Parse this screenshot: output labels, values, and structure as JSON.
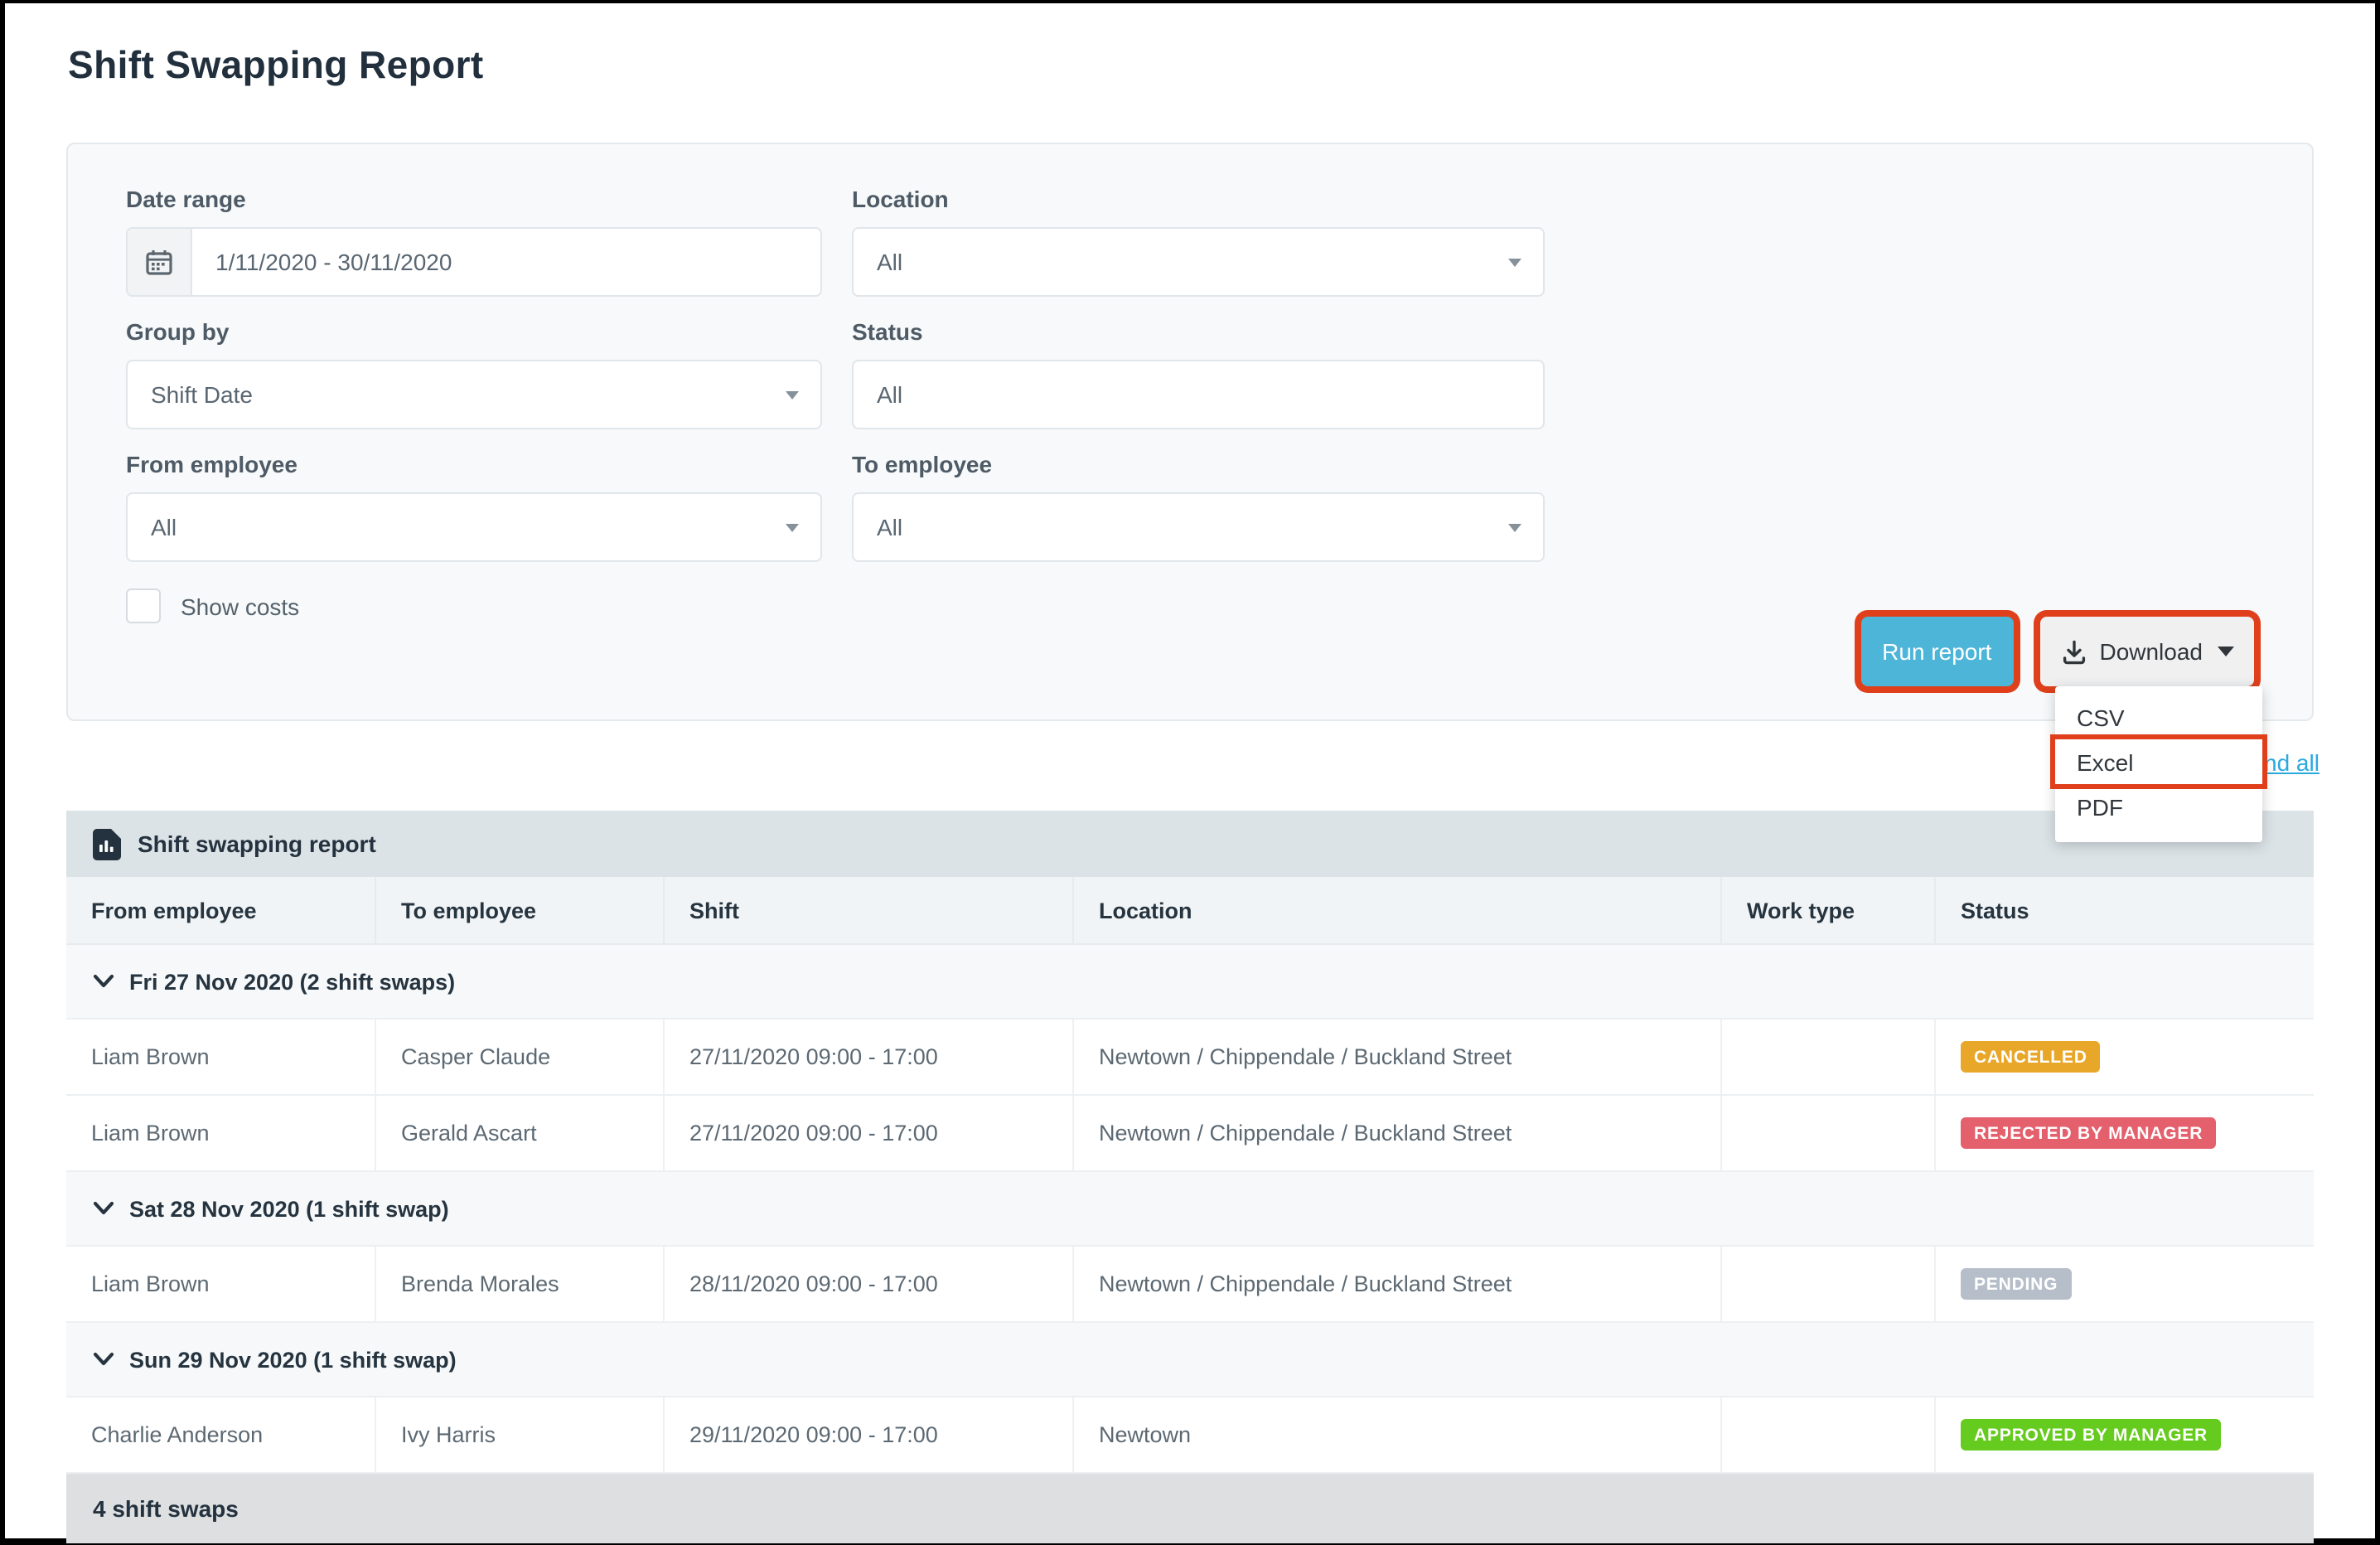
{
  "page": {
    "title": "Shift Swapping Report"
  },
  "filters": {
    "date_range": {
      "label": "Date range",
      "value": "1/11/2020 - 30/11/2020",
      "icon": "calendar-icon"
    },
    "location": {
      "label": "Location",
      "value": "All"
    },
    "group_by": {
      "label": "Group by",
      "value": "Shift Date"
    },
    "status": {
      "label": "Status",
      "value": "All"
    },
    "from_employee": {
      "label": "From employee",
      "value": "All"
    },
    "to_employee": {
      "label": "To employee",
      "value": "All"
    },
    "show_costs": {
      "label": "Show costs",
      "checked": false
    }
  },
  "actions": {
    "run_report": "Run report",
    "download": "Download",
    "download_menu": [
      "CSV",
      "Excel",
      "PDF"
    ],
    "highlighted_menu_item": "Excel",
    "partially_visible_link": "nd all"
  },
  "annotation": {
    "highlight_color": "#df401b",
    "highlighted": [
      "run-report-button",
      "download-button",
      "menu-item-excel"
    ]
  },
  "colors": {
    "primary_button": "#4db5d8",
    "link": "#2aa9df",
    "badge_cancelled": "#e9a72a",
    "badge_rejected": "#e4606d",
    "badge_pending": "#b6bfc9",
    "badge_approved": "#65cb1e"
  },
  "report": {
    "title": "Shift swapping report",
    "columns": [
      "From employee",
      "To employee",
      "Shift",
      "Location",
      "Work type",
      "Status"
    ],
    "groups": [
      {
        "label": "Fri 27 Nov 2020 (2 shift swaps)",
        "rows": [
          {
            "from": "Liam Brown",
            "to": "Casper Claude",
            "shift": "27/11/2020 09:00 - 17:00",
            "location": "Newtown / Chippendale / Buckland Street",
            "work_type": "",
            "status": "CANCELLED",
            "status_color": "#e9a72a"
          },
          {
            "from": "Liam Brown",
            "to": "Gerald Ascart",
            "shift": "27/11/2020 09:00 - 17:00",
            "location": "Newtown / Chippendale / Buckland Street",
            "work_type": "",
            "status": "REJECTED BY MANAGER",
            "status_color": "#e4606d"
          }
        ]
      },
      {
        "label": "Sat 28 Nov 2020 (1 shift swap)",
        "rows": [
          {
            "from": "Liam Brown",
            "to": "Brenda Morales",
            "shift": "28/11/2020 09:00 - 17:00",
            "location": "Newtown / Chippendale / Buckland Street",
            "work_type": "",
            "status": "PENDING",
            "status_color": "#b6bfc9"
          }
        ]
      },
      {
        "label": "Sun 29 Nov 2020 (1 shift swap)",
        "rows": [
          {
            "from": "Charlie Anderson",
            "to": "Ivy Harris",
            "shift": "29/11/2020 09:00 - 17:00",
            "location": "Newtown",
            "work_type": "",
            "status": "APPROVED BY MANAGER",
            "status_color": "#65cb1e"
          }
        ]
      }
    ],
    "footer": "4 shift swaps"
  }
}
